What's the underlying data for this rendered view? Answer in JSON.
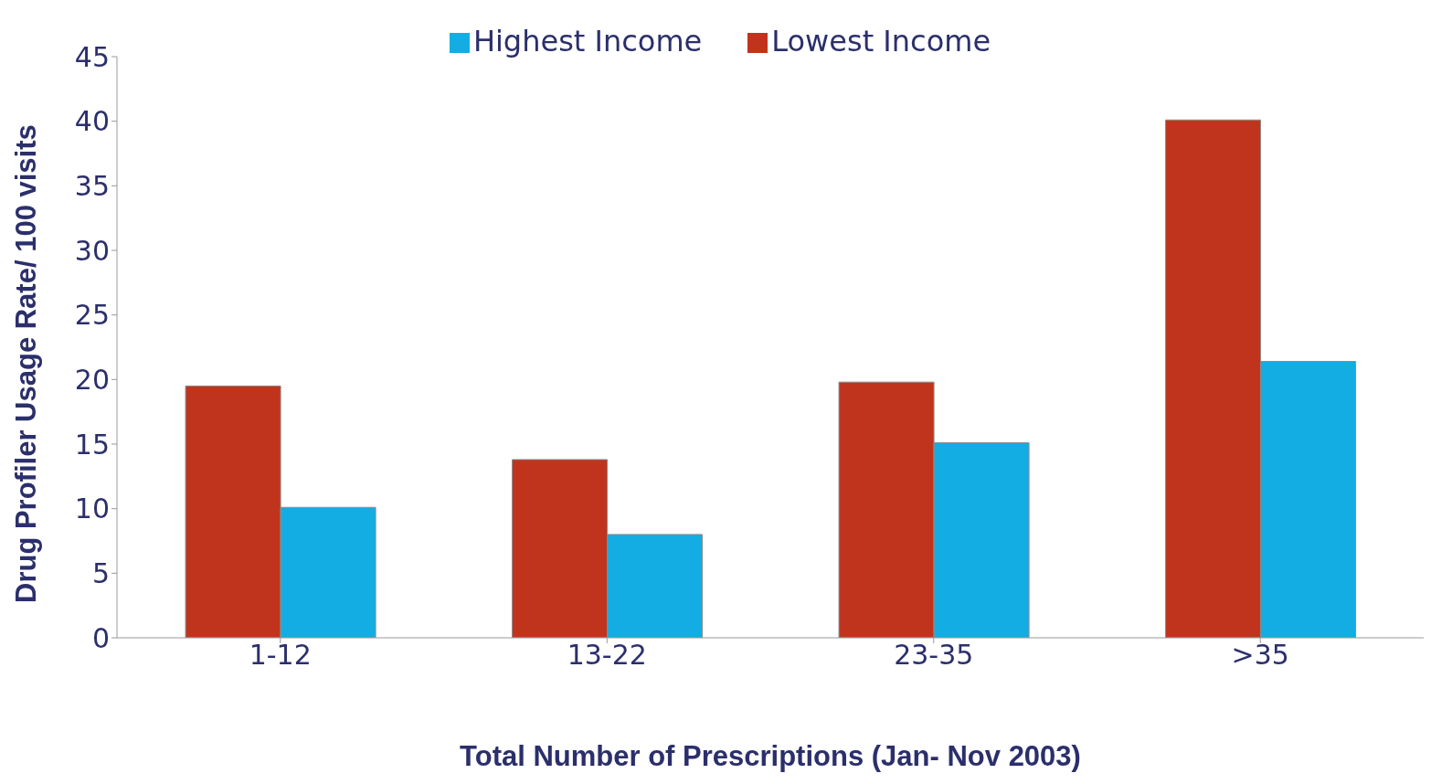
{
  "chart_data": {
    "type": "bar",
    "xlabel": "Total Number of Prescriptions (Jan- Nov 2003)",
    "ylabel": "Drug Profiler Usage Rate/ 100 visits",
    "categories": [
      "1-12",
      "13-22",
      "23-35",
      ">35"
    ],
    "series": [
      {
        "name": "Lowest Income",
        "color": "#c0341d",
        "values": [
          19.5,
          13.8,
          19.8,
          40.1
        ]
      },
      {
        "name": "Highest Income",
        "color": "#14ade3",
        "values": [
          10.1,
          8.0,
          15.1,
          21.4
        ]
      }
    ],
    "ylim": [
      0,
      45
    ],
    "yticks": [
      0,
      5,
      10,
      15,
      20,
      25,
      30,
      35,
      40,
      45
    ],
    "grid": false,
    "legend": "top"
  }
}
